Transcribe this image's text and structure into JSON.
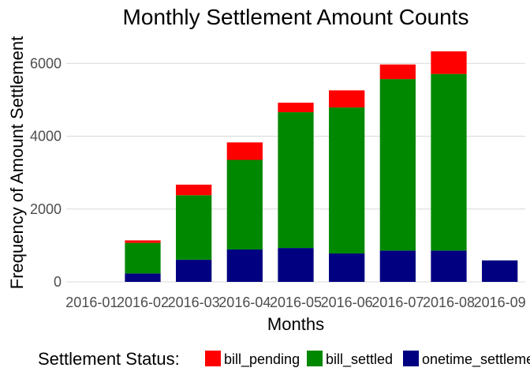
{
  "chart_data": {
    "type": "bar",
    "stacked": true,
    "title": "Monthly Settlement Amount Counts",
    "xlabel": "Months",
    "ylabel": "Frequency of Amount Settlement",
    "categories": [
      "2016-01",
      "2016-02",
      "2016-03",
      "2016-04",
      "2016-05",
      "2016-06",
      "2016-07",
      "2016-08",
      "2016-09"
    ],
    "ylim": [
      0,
      6700
    ],
    "yticks": [
      0,
      2000,
      4000,
      6000
    ],
    "grid": "horizontal",
    "legend": {
      "title": "Settlement Status:",
      "position": "bottom"
    },
    "series": [
      {
        "name": "onetime_settlement",
        "color": "#000080",
        "values": [
          0,
          230,
          610,
          890,
          930,
          780,
          860,
          860,
          590
        ]
      },
      {
        "name": "bill_settled",
        "color": "#008800",
        "values": [
          0,
          840,
          1770,
          2460,
          3730,
          4010,
          4710,
          4850,
          0
        ]
      },
      {
        "name": "bill_pending",
        "color": "#ff0000",
        "values": [
          0,
          70,
          290,
          480,
          260,
          470,
          400,
          620,
          0
        ]
      }
    ]
  }
}
